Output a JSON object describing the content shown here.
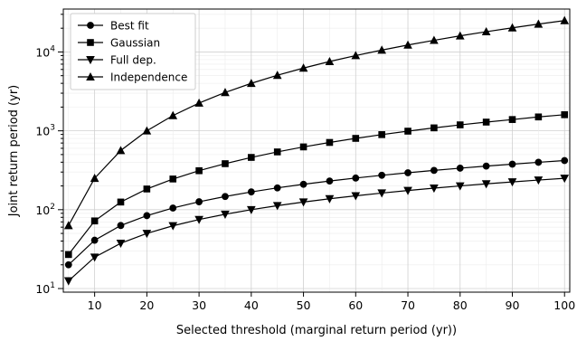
{
  "chart_data": {
    "type": "line",
    "xlabel": "Selected  threshold (marginal return period (yr))",
    "ylabel": "Joint return period (yr)",
    "yscale": "log",
    "xlim": [
      4,
      101
    ],
    "ylim": [
      9,
      35000
    ],
    "grid": true,
    "legend_position": "top-left",
    "x": [
      5,
      10,
      15,
      20,
      25,
      30,
      35,
      40,
      45,
      50,
      55,
      60,
      65,
      70,
      75,
      80,
      85,
      90,
      95,
      100
    ],
    "x_ticks": [
      10,
      20,
      30,
      40,
      50,
      60,
      70,
      80,
      90,
      100
    ],
    "y_ticks": [
      {
        "value": 10,
        "mant": "10",
        "exp": "1"
      },
      {
        "value": 100,
        "mant": "10",
        "exp": "2"
      },
      {
        "value": 1000,
        "mant": "10",
        "exp": "3"
      },
      {
        "value": 10000,
        "mant": "10",
        "exp": "4"
      }
    ],
    "series": [
      {
        "name": "Best fit",
        "marker": "circle",
        "values": [
          20,
          41,
          63,
          84,
          105,
          126,
          147,
          168,
          189,
          210,
          231,
          252,
          273,
          294,
          315,
          336,
          357,
          378,
          399,
          420
        ]
      },
      {
        "name": "Gaussian",
        "marker": "square",
        "values": [
          27,
          72,
          125,
          183,
          245,
          312,
          383,
          460,
          540,
          625,
          712,
          802,
          895,
          990,
          1090,
          1190,
          1290,
          1390,
          1500,
          1600
        ]
      },
      {
        "name": "Full dep.",
        "marker": "triangle-down",
        "values": [
          12.5,
          25,
          37.5,
          50,
          62.5,
          75,
          87.5,
          100,
          112.5,
          125,
          137.5,
          150,
          162.5,
          175,
          187.5,
          200,
          212.5,
          225,
          237.5,
          250
        ]
      },
      {
        "name": "Independence",
        "marker": "triangle-up",
        "values": [
          63,
          250,
          563,
          1000,
          1563,
          2250,
          3063,
          4000,
          5063,
          6250,
          7563,
          9000,
          10563,
          12250,
          14063,
          16000,
          18063,
          20250,
          22563,
          25000
        ]
      }
    ]
  }
}
